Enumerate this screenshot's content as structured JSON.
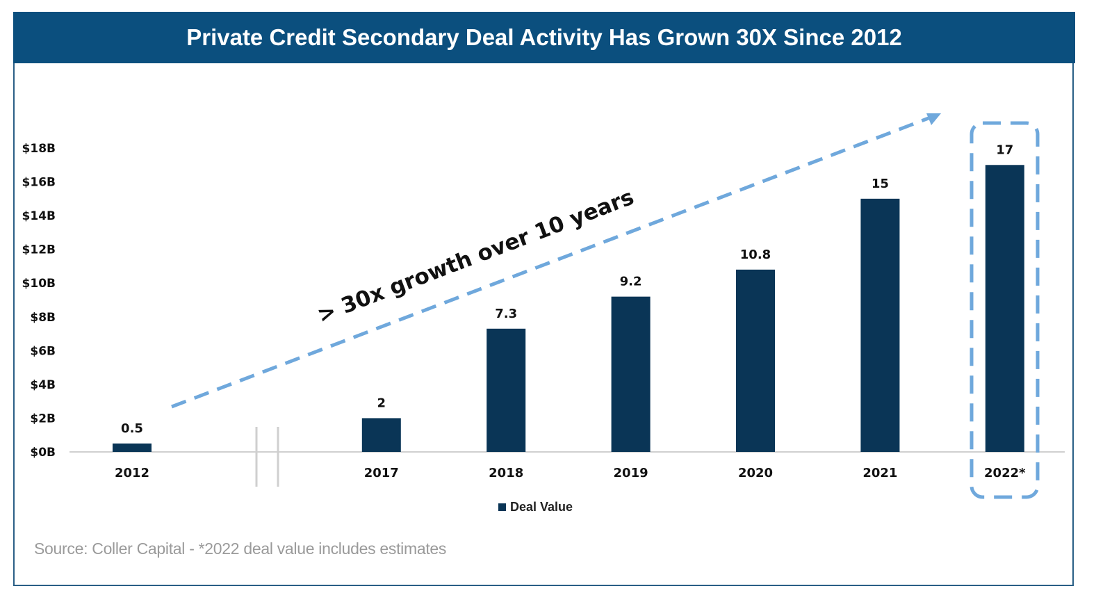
{
  "title": "Private Credit Secondary Deal Activity Has Grown 30X Since 2012",
  "source": "Source: Coller Capital - *2022 deal value includes estimates",
  "colors": {
    "title_bg": "#0b4f7e",
    "bar": "#0a3556",
    "annotation": "#6fa8dc",
    "axis": "#d0d0d0"
  },
  "chart_data": {
    "type": "bar",
    "title": "Private Credit Secondary Deal Activity Has Grown 30X Since 2012",
    "categories": [
      "2012",
      "2017",
      "2018",
      "2019",
      "2020",
      "2021",
      "2022*"
    ],
    "series": [
      {
        "name": "Deal Value",
        "values": [
          0.5,
          2,
          7.3,
          9.2,
          10.8,
          15,
          17
        ]
      }
    ],
    "data_labels": [
      "0.5",
      "2",
      "7.3",
      "9.2",
      "10.8",
      "15",
      "17"
    ],
    "ylim": [
      0,
      18
    ],
    "yticks": [
      0,
      2,
      4,
      6,
      8,
      10,
      12,
      14,
      16,
      18
    ],
    "ytick_labels": [
      "$0B",
      "$2B",
      "$4B",
      "$6B",
      "$8B",
      "$10B",
      "$12B",
      "$14B",
      "$16B",
      "$18B"
    ],
    "xlabel": "",
    "ylabel": "",
    "axis_break_after": "2012",
    "highlighted_category": "2022*",
    "annotation": "> 30x growth over 10 years",
    "legend": {
      "entries": [
        "Deal Value"
      ],
      "placement": "bottom"
    },
    "grid": false
  }
}
